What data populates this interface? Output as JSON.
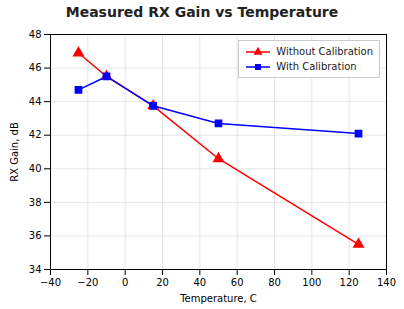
{
  "chart_data": {
    "type": "line",
    "title": "Measured RX Gain vs Temperature",
    "xlabel": "Temperature, C",
    "ylabel": "RX Gain, dB",
    "x": [
      -25,
      -10,
      15,
      50,
      125
    ],
    "series": [
      {
        "name": "Without Calibration",
        "color": "#ff0000",
        "marker": "triangle",
        "values": [
          46.9,
          45.5,
          43.75,
          40.6,
          35.5
        ]
      },
      {
        "name": "With Calibration",
        "color": "#0000ff",
        "marker": "square",
        "values": [
          44.7,
          45.5,
          43.75,
          42.7,
          42.1
        ]
      }
    ],
    "xlim": [
      -40,
      140
    ],
    "ylim": [
      34,
      48
    ],
    "xticks": [
      -40,
      -20,
      0,
      20,
      40,
      60,
      80,
      100,
      120,
      140
    ],
    "yticks": [
      34,
      36,
      38,
      40,
      42,
      44,
      46,
      48
    ],
    "grid": true,
    "legend": "upper right"
  }
}
